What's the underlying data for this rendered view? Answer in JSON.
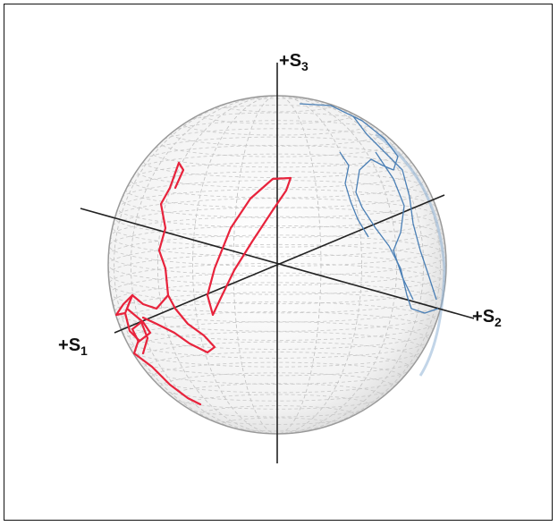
{
  "axes": {
    "s1": {
      "sign": "+",
      "letter": "S",
      "index": "1"
    },
    "s2": {
      "sign": "+",
      "letter": "S",
      "index": "2"
    },
    "s3": {
      "sign": "+",
      "letter": "S",
      "index": "3"
    }
  },
  "colors": {
    "frame": "#111111",
    "axis": "#222222",
    "sphere_grid": "#c8c8c8",
    "sphere_outline": "#9a9a9a",
    "trace_red": "#e8233c",
    "trace_blue": "#4a7fb5"
  }
}
